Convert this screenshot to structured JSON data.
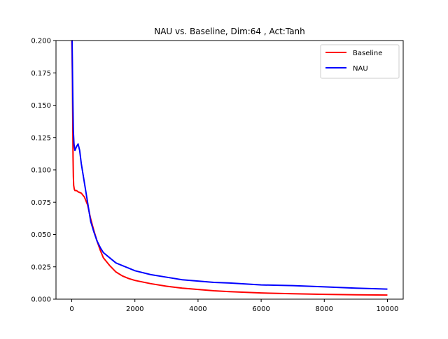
{
  "chart_data": {
    "type": "line",
    "title": "NAU vs. Baseline, Dim:64 , Act:Tanh",
    "xlabel": "",
    "ylabel": "",
    "xlim": [
      -500,
      10500
    ],
    "ylim": [
      0.0,
      0.2
    ],
    "xticks": [
      0,
      2000,
      4000,
      6000,
      8000,
      10000
    ],
    "xtick_labels": [
      "0",
      "2000",
      "4000",
      "6000",
      "8000",
      "10000"
    ],
    "yticks": [
      0.0,
      0.025,
      0.05,
      0.075,
      0.1,
      0.125,
      0.15,
      0.175,
      0.2
    ],
    "ytick_labels": [
      "0.000",
      "0.025",
      "0.050",
      "0.075",
      "0.100",
      "0.125",
      "0.150",
      "0.175",
      "0.200"
    ],
    "grid": false,
    "legend": "top-right",
    "series": [
      {
        "name": "Baseline",
        "color": "#ff0000",
        "x": [
          0,
          10,
          20,
          30,
          40,
          50,
          60,
          80,
          100,
          150,
          200,
          300,
          400,
          500,
          600,
          700,
          800,
          900,
          1000,
          1200,
          1400,
          1600,
          1800,
          2000,
          2500,
          3000,
          3500,
          4000,
          4500,
          5000,
          6000,
          7000,
          8000,
          9000,
          10000
        ],
        "values": [
          0.2,
          0.19,
          0.17,
          0.14,
          0.11,
          0.095,
          0.088,
          0.085,
          0.084,
          0.084,
          0.083,
          0.082,
          0.079,
          0.073,
          0.062,
          0.053,
          0.045,
          0.038,
          0.032,
          0.026,
          0.021,
          0.018,
          0.016,
          0.0145,
          0.012,
          0.01,
          0.0085,
          0.0075,
          0.0065,
          0.0058,
          0.0048,
          0.0042,
          0.0037,
          0.0034,
          0.0032
        ]
      },
      {
        "name": "NAU",
        "color": "#0000ff",
        "x": [
          0,
          10,
          20,
          30,
          40,
          50,
          70,
          100,
          150,
          200,
          250,
          300,
          400,
          500,
          600,
          700,
          800,
          900,
          1000,
          1200,
          1400,
          1600,
          1800,
          2000,
          2500,
          3000,
          3500,
          4000,
          4500,
          5000,
          6000,
          7000,
          8000,
          9000,
          10000
        ],
        "values": [
          0.2,
          0.2,
          0.18,
          0.16,
          0.145,
          0.13,
          0.12,
          0.115,
          0.118,
          0.12,
          0.115,
          0.105,
          0.09,
          0.075,
          0.06,
          0.052,
          0.045,
          0.04,
          0.036,
          0.032,
          0.028,
          0.026,
          0.024,
          0.022,
          0.019,
          0.017,
          0.015,
          0.014,
          0.013,
          0.0125,
          0.011,
          0.0105,
          0.0095,
          0.0085,
          0.0078
        ]
      }
    ]
  }
}
